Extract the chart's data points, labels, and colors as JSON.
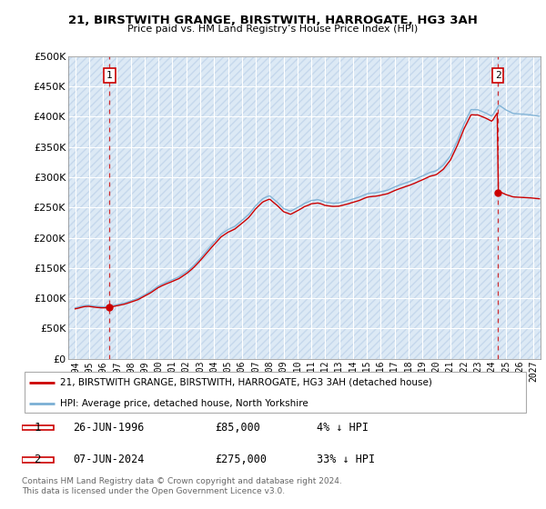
{
  "title": "21, BIRSTWITH GRANGE, BIRSTWITH, HARROGATE, HG3 3AH",
  "subtitle": "Price paid vs. HM Land Registry’s House Price Index (HPI)",
  "sale1_date": "26-JUN-1996",
  "sale1_price": 85000,
  "sale1_label": "1",
  "sale1_year": 1996.48,
  "sale2_date": "07-JUN-2024",
  "sale2_price": 275000,
  "sale2_label": "2",
  "sale2_year": 2024.44,
  "legend_line1": "21, BIRSTWITH GRANGE, BIRSTWITH, HARROGATE, HG3 3AH (detached house)",
  "legend_line2": "HPI: Average price, detached house, North Yorkshire",
  "table_row1": [
    "1",
    "26-JUN-1996",
    "£85,000",
    "4% ↓ HPI"
  ],
  "table_row2": [
    "2",
    "07-JUN-2024",
    "£275,000",
    "33% ↓ HPI"
  ],
  "footer": "Contains HM Land Registry data © Crown copyright and database right 2024.\nThis data is licensed under the Open Government Licence v3.0.",
  "hpi_color": "#7aafd4",
  "price_color": "#cc0000",
  "vline_color": "#cc0000",
  "bg_color": "#dce9f5",
  "hatch_color": "#c5d8ec",
  "grid_color": "#ffffff",
  "ylim": [
    0,
    500000
  ],
  "yticks": [
    0,
    50000,
    100000,
    150000,
    200000,
    250000,
    300000,
    350000,
    400000,
    450000,
    500000
  ],
  "xlim_start": 1993.5,
  "xlim_end": 2027.5,
  "xticks": [
    1994,
    1995,
    1996,
    1997,
    1998,
    1999,
    2000,
    2001,
    2002,
    2003,
    2004,
    2005,
    2006,
    2007,
    2008,
    2009,
    2010,
    2011,
    2012,
    2013,
    2014,
    2015,
    2016,
    2017,
    2018,
    2019,
    2020,
    2021,
    2022,
    2023,
    2024,
    2025,
    2026,
    2027
  ]
}
